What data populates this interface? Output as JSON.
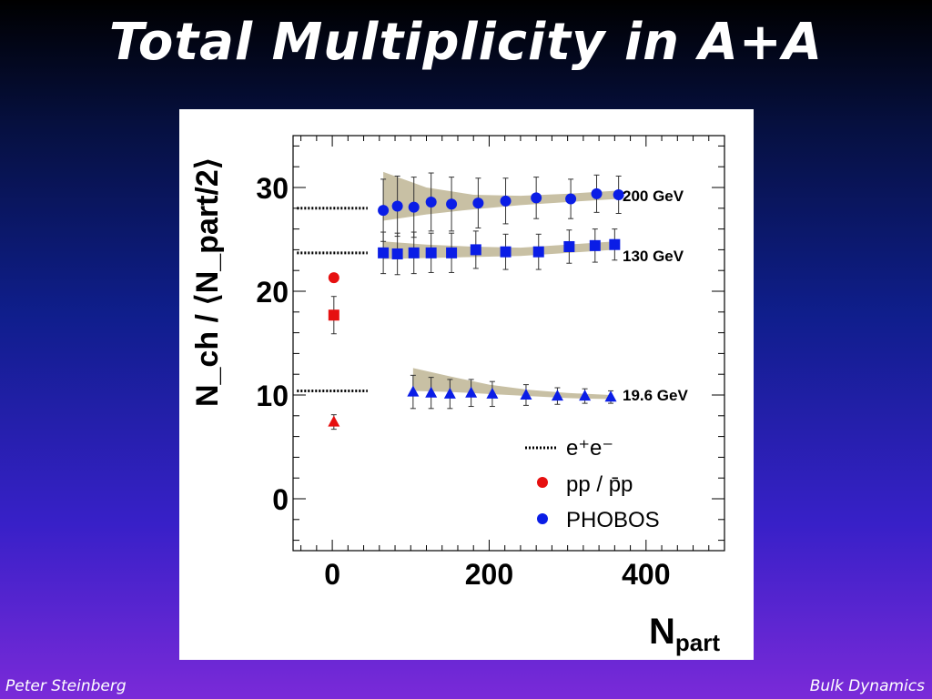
{
  "slide": {
    "title": "Total Multiplicity in A+A",
    "footer_left": "Peter Steinberg",
    "footer_right": "Bulk Dynamics"
  },
  "colors": {
    "phobos": "#0a1de6",
    "pp": "#e61010",
    "band": "#c8c0a4"
  },
  "chart_data": {
    "type": "scatter",
    "xlabel_main": "N",
    "xlabel_sub": "part",
    "ylabel": "N_ch / ⟨N_part/2⟩",
    "xlim": [
      -50,
      500
    ],
    "ylim": [
      -5,
      35
    ],
    "xticks": [
      0,
      200,
      400
    ],
    "yticks": [
      0,
      10,
      20,
      30
    ],
    "series": [
      {
        "name": "200 GeV",
        "marker": "circle",
        "color": "#0a1de6",
        "label_y": 29.2,
        "x": [
          65,
          83,
          104,
          126,
          152,
          186,
          221,
          260,
          304,
          337,
          365
        ],
        "y": [
          27.8,
          28.2,
          28.1,
          28.6,
          28.4,
          28.5,
          28.7,
          29.0,
          28.9,
          29.4,
          29.3
        ],
        "err": [
          3.0,
          2.9,
          2.9,
          2.8,
          2.6,
          2.4,
          2.2,
          2.0,
          1.9,
          1.8,
          1.8
        ],
        "band_x": [
          65,
          120,
          180,
          240,
          300,
          365
        ],
        "band_lo": [
          26.8,
          27.4,
          27.9,
          28.3,
          28.6,
          28.9
        ],
        "band_hi": [
          31.5,
          30.0,
          29.3,
          29.2,
          29.4,
          29.7
        ]
      },
      {
        "name": "130 GeV",
        "marker": "square",
        "color": "#0a1de6",
        "label_y": 23.4,
        "x": [
          65,
          83,
          104,
          126,
          152,
          183,
          221,
          263,
          302,
          335,
          360
        ],
        "y": [
          23.7,
          23.6,
          23.7,
          23.7,
          23.7,
          24.0,
          23.8,
          23.8,
          24.3,
          24.4,
          24.5
        ],
        "err": [
          2.0,
          2.0,
          2.0,
          1.9,
          1.9,
          1.8,
          1.7,
          1.7,
          1.6,
          1.6,
          1.5
        ],
        "band_x": [
          65,
          120,
          180,
          240,
          300,
          360
        ],
        "band_lo": [
          23.1,
          23.2,
          23.3,
          23.4,
          23.7,
          24.0
        ],
        "band_hi": [
          24.8,
          24.5,
          24.3,
          24.2,
          24.5,
          24.8
        ]
      },
      {
        "name": "19.6 GeV",
        "marker": "triangle",
        "color": "#0a1de6",
        "label_y": 10.0,
        "x": [
          103,
          126,
          150,
          177,
          204,
          247,
          287,
          322,
          355
        ],
        "y": [
          10.3,
          10.2,
          10.1,
          10.2,
          10.1,
          10.0,
          9.9,
          9.9,
          9.8
        ],
        "err": [
          1.6,
          1.5,
          1.4,
          1.3,
          1.2,
          1.0,
          0.8,
          0.7,
          0.6
        ],
        "band_x": [
          103,
          150,
          200,
          250,
          300,
          355
        ],
        "band_lo": [
          10.4,
          10.3,
          10.1,
          9.9,
          9.7,
          9.6
        ],
        "band_hi": [
          12.6,
          11.8,
          11.0,
          10.5,
          10.2,
          10.0
        ]
      }
    ],
    "pp_points": [
      {
        "marker": "circle",
        "x": 2,
        "y": 21.3,
        "err": 0.0
      },
      {
        "marker": "square",
        "x": 2,
        "y": 17.7,
        "err": 1.8
      },
      {
        "marker": "triangle",
        "x": 2,
        "y": 7.4,
        "err": 0.7
      }
    ],
    "ee_lines": [
      {
        "y": 28.0,
        "x_from": -45,
        "x_to": 45
      },
      {
        "y": 23.7,
        "x_from": -45,
        "x_to": 45
      },
      {
        "y": 10.4,
        "x_from": -45,
        "x_to": 45
      }
    ],
    "legend": {
      "placement": "bottom-right",
      "items": [
        {
          "symbol": "dotted-line",
          "label": "e⁺e⁻"
        },
        {
          "symbol": "red-dot",
          "label": "pp / p̄p"
        },
        {
          "symbol": "blue-dot",
          "label": "PHOBOS"
        }
      ]
    }
  }
}
